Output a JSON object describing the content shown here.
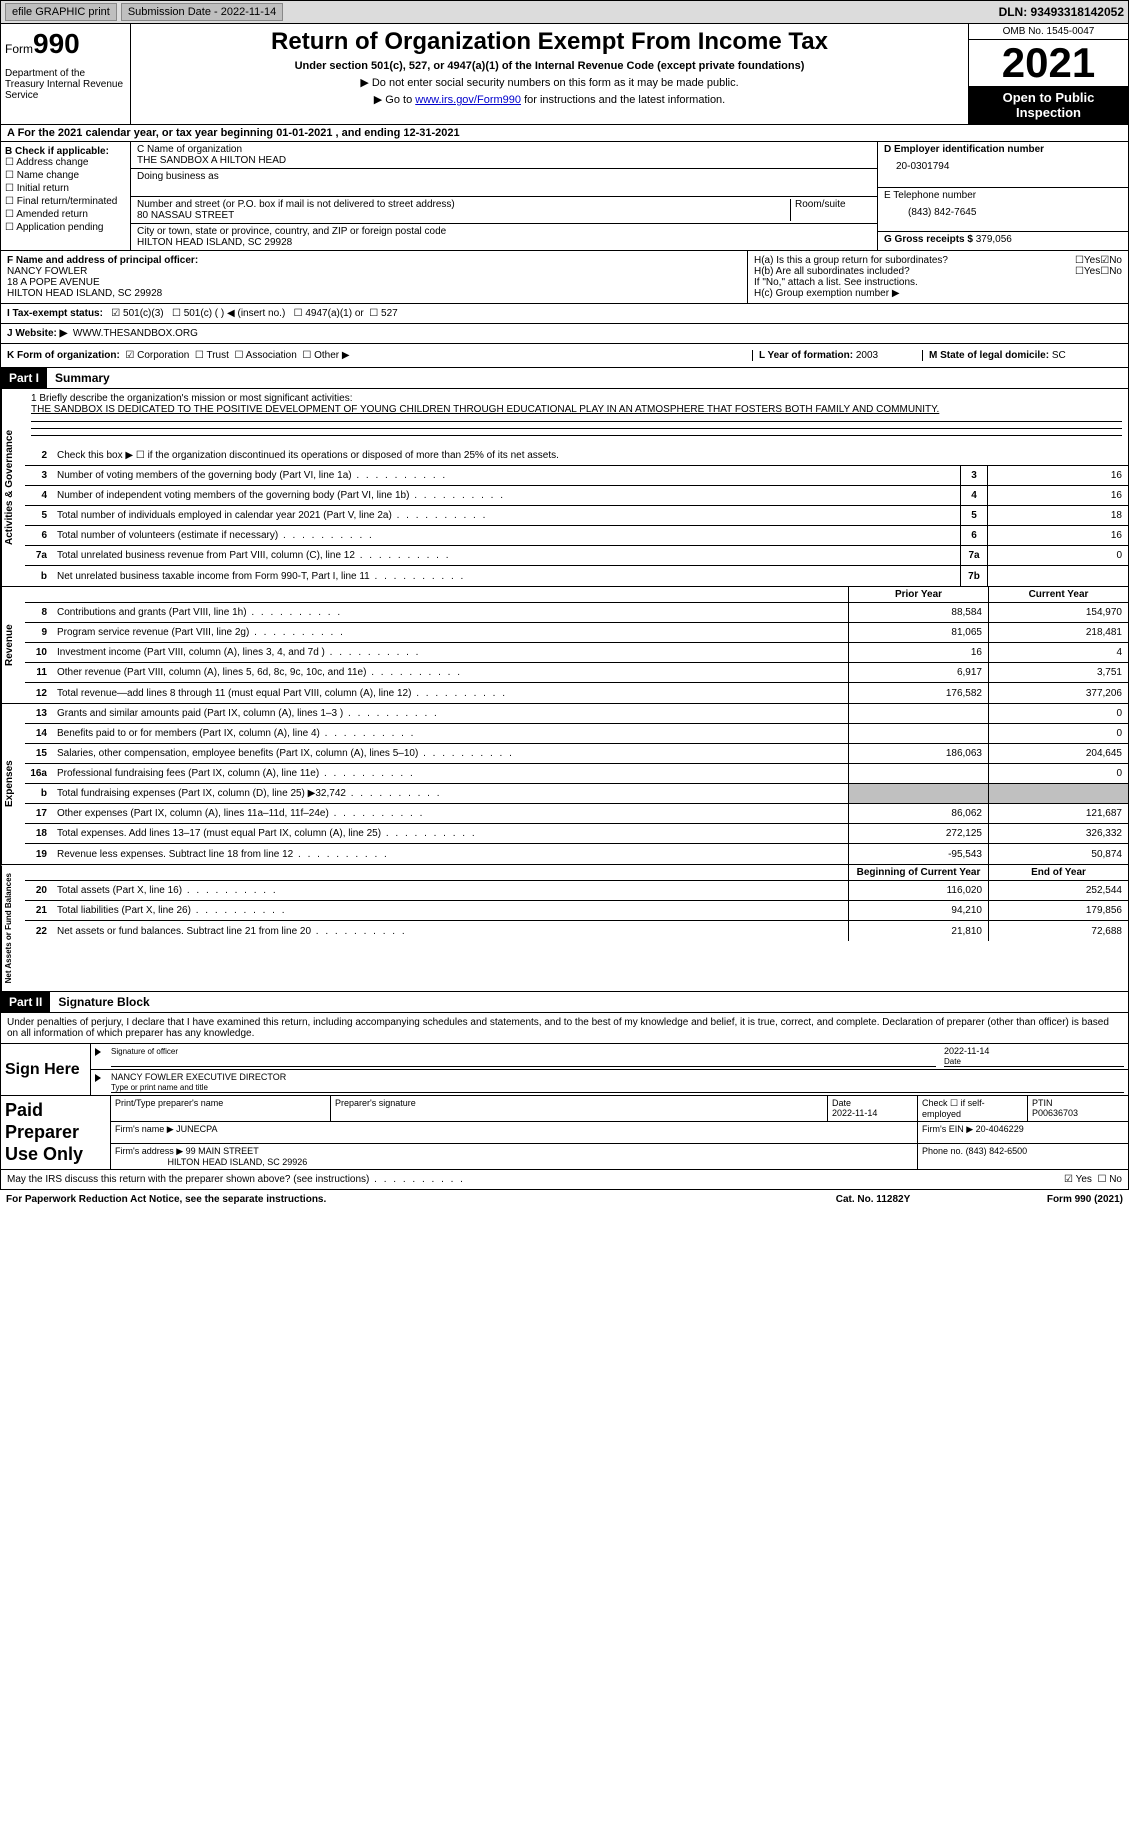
{
  "topbar": {
    "efile": "efile GRAPHIC print",
    "submission": "Submission Date - 2022-11-14",
    "dln": "DLN: 93493318142052"
  },
  "header": {
    "form_prefix": "Form",
    "form_num": "990",
    "dept": "Department of the Treasury Internal Revenue Service",
    "title": "Return of Organization Exempt From Income Tax",
    "subtitle": "Under section 501(c), 527, or 4947(a)(1) of the Internal Revenue Code (except private foundations)",
    "note1": "▶ Do not enter social security numbers on this form as it may be made public.",
    "note2_pre": "▶ Go to ",
    "note2_link": "www.irs.gov/Form990",
    "note2_post": " for instructions and the latest information.",
    "omb": "OMB No. 1545-0047",
    "year": "2021",
    "otp": "Open to Public Inspection"
  },
  "section_a": "A For the 2021 calendar year, or tax year beginning 01-01-2021   , and ending 12-31-2021",
  "col_b": {
    "label": "B Check if applicable:",
    "opts": [
      "Address change",
      "Name change",
      "Initial return",
      "Final return/terminated",
      "Amended return",
      "Application pending"
    ]
  },
  "col_c": {
    "name_label": "C Name of organization",
    "name": "THE SANDBOX A HILTON HEAD",
    "dba_label": "Doing business as",
    "street_label": "Number and street (or P.O. box if mail is not delivered to street address)",
    "room_label": "Room/suite",
    "street": "80 NASSAU STREET",
    "city_label": "City or town, state or province, country, and ZIP or foreign postal code",
    "city": "HILTON HEAD ISLAND, SC  29928"
  },
  "col_d": {
    "ein_label": "D Employer identification number",
    "ein": "20-0301794",
    "phone_label": "E Telephone number",
    "phone": "(843) 842-7645",
    "gross_label": "G Gross receipts $",
    "gross": "379,056"
  },
  "block_f": {
    "label": "F Name and address of principal officer:",
    "name": "NANCY FOWLER",
    "addr1": "18 A POPE AVENUE",
    "addr2": "HILTON HEAD ISLAND, SC  29928"
  },
  "block_h": {
    "ha": "H(a)  Is this a group return for subordinates?",
    "hb": "H(b)  Are all subordinates included?",
    "hnote": "If \"No,\" attach a list. See instructions.",
    "hc": "H(c)  Group exemption number ▶",
    "yes": "Yes",
    "no": "No"
  },
  "status": {
    "label": "I  Tax-exempt status:",
    "opt1": "501(c)(3)",
    "opt2": "501(c) (  ) ◀ (insert no.)",
    "opt3": "4947(a)(1) or",
    "opt4": "527"
  },
  "website": {
    "label": "J  Website: ▶",
    "value": "WWW.THESANDBOX.ORG"
  },
  "kform": {
    "label": "K Form of organization:",
    "corp": "Corporation",
    "trust": "Trust",
    "assoc": "Association",
    "other": "Other ▶",
    "year_label": "L Year of formation:",
    "year": "2003",
    "state_label": "M State of legal domicile:",
    "state": "SC"
  },
  "parts": {
    "p1": "Part I",
    "p1_title": "Summary",
    "p2": "Part II",
    "p2_title": "Signature Block"
  },
  "vtabs": {
    "v1": "Activities & Governance",
    "v2": "Revenue",
    "v3": "Expenses",
    "v4": "Net Assets or Fund Balances"
  },
  "mission": {
    "label": "1  Briefly describe the organization's mission or most significant activities:",
    "text": "THE SANDBOX IS DEDICATED TO THE POSITIVE DEVELOPMENT OF YOUNG CHILDREN THROUGH EDUCATIONAL PLAY IN AN ATMOSPHERE THAT FOSTERS BOTH FAMILY AND COMMUNITY."
  },
  "line2": "Check this box ▶ ☐ if the organization discontinued its operations or disposed of more than 25% of its net assets.",
  "lines_gov": [
    {
      "n": "3",
      "d": "Number of voting members of the governing body (Part VI, line 1a)",
      "b": "3",
      "v": "16"
    },
    {
      "n": "4",
      "d": "Number of independent voting members of the governing body (Part VI, line 1b)",
      "b": "4",
      "v": "16"
    },
    {
      "n": "5",
      "d": "Total number of individuals employed in calendar year 2021 (Part V, line 2a)",
      "b": "5",
      "v": "18"
    },
    {
      "n": "6",
      "d": "Total number of volunteers (estimate if necessary)",
      "b": "6",
      "v": "16"
    },
    {
      "n": "7a",
      "d": "Total unrelated business revenue from Part VIII, column (C), line 12",
      "b": "7a",
      "v": "0"
    },
    {
      "n": "b",
      "d": "Net unrelated business taxable income from Form 990-T, Part I, line 11",
      "b": "7b",
      "v": ""
    }
  ],
  "col_headers": {
    "prior": "Prior Year",
    "current": "Current Year",
    "begin": "Beginning of Current Year",
    "end": "End of Year"
  },
  "lines_rev": [
    {
      "n": "8",
      "d": "Contributions and grants (Part VIII, line 1h)",
      "p": "88,584",
      "c": "154,970"
    },
    {
      "n": "9",
      "d": "Program service revenue (Part VIII, line 2g)",
      "p": "81,065",
      "c": "218,481"
    },
    {
      "n": "10",
      "d": "Investment income (Part VIII, column (A), lines 3, 4, and 7d )",
      "p": "16",
      "c": "4"
    },
    {
      "n": "11",
      "d": "Other revenue (Part VIII, column (A), lines 5, 6d, 8c, 9c, 10c, and 11e)",
      "p": "6,917",
      "c": "3,751"
    },
    {
      "n": "12",
      "d": "Total revenue—add lines 8 through 11 (must equal Part VIII, column (A), line 12)",
      "p": "176,582",
      "c": "377,206"
    }
  ],
  "lines_exp": [
    {
      "n": "13",
      "d": "Grants and similar amounts paid (Part IX, column (A), lines 1–3 )",
      "p": "",
      "c": "0"
    },
    {
      "n": "14",
      "d": "Benefits paid to or for members (Part IX, column (A), line 4)",
      "p": "",
      "c": "0"
    },
    {
      "n": "15",
      "d": "Salaries, other compensation, employee benefits (Part IX, column (A), lines 5–10)",
      "p": "186,063",
      "c": "204,645"
    },
    {
      "n": "16a",
      "d": "Professional fundraising fees (Part IX, column (A), line 11e)",
      "p": "",
      "c": "0"
    },
    {
      "n": "b",
      "d": "Total fundraising expenses (Part IX, column (D), line 25) ▶32,742",
      "p": "shaded",
      "c": "shaded"
    },
    {
      "n": "17",
      "d": "Other expenses (Part IX, column (A), lines 11a–11d, 11f–24e)",
      "p": "86,062",
      "c": "121,687"
    },
    {
      "n": "18",
      "d": "Total expenses. Add lines 13–17 (must equal Part IX, column (A), line 25)",
      "p": "272,125",
      "c": "326,332"
    },
    {
      "n": "19",
      "d": "Revenue less expenses. Subtract line 18 from line 12",
      "p": "-95,543",
      "c": "50,874"
    }
  ],
  "lines_net": [
    {
      "n": "20",
      "d": "Total assets (Part X, line 16)",
      "p": "116,020",
      "c": "252,544"
    },
    {
      "n": "21",
      "d": "Total liabilities (Part X, line 26)",
      "p": "94,210",
      "c": "179,856"
    },
    {
      "n": "22",
      "d": "Net assets or fund balances. Subtract line 21 from line 20",
      "p": "21,810",
      "c": "72,688"
    }
  ],
  "sig_text": "Under penalties of perjury, I declare that I have examined this return, including accompanying schedules and statements, and to the best of my knowledge and belief, it is true, correct, and complete. Declaration of preparer (other than officer) is based on all information of which preparer has any knowledge.",
  "sign": {
    "here": "Sign Here",
    "sig_officer": "Signature of officer",
    "date": "Date",
    "date_val": "2022-11-14",
    "name": "NANCY FOWLER  EXECUTIVE DIRECTOR",
    "name_label": "Type or print name and title"
  },
  "paid": {
    "label": "Paid Preparer Use Only",
    "print_label": "Print/Type preparer's name",
    "sig_label": "Preparer's signature",
    "date_label": "Date",
    "date_val": "2022-11-14",
    "check_label": "Check ☐ if self-employed",
    "ptin_label": "PTIN",
    "ptin": "P00636703",
    "firm_label": "Firm's name   ▶",
    "firm": "JUNECPA",
    "ein_label": "Firm's EIN ▶",
    "ein": "20-4046229",
    "addr_label": "Firm's address ▶",
    "addr1": "99 MAIN STREET",
    "addr2": "HILTON HEAD ISLAND, SC  29926",
    "phone_label": "Phone no.",
    "phone": "(843) 842-6500"
  },
  "irs_discuss": "May the IRS discuss this return with the preparer shown above? (see instructions)",
  "footer": {
    "left": "For Paperwork Reduction Act Notice, see the separate instructions.",
    "mid": "Cat. No. 11282Y",
    "right": "Form 990 (2021)"
  }
}
